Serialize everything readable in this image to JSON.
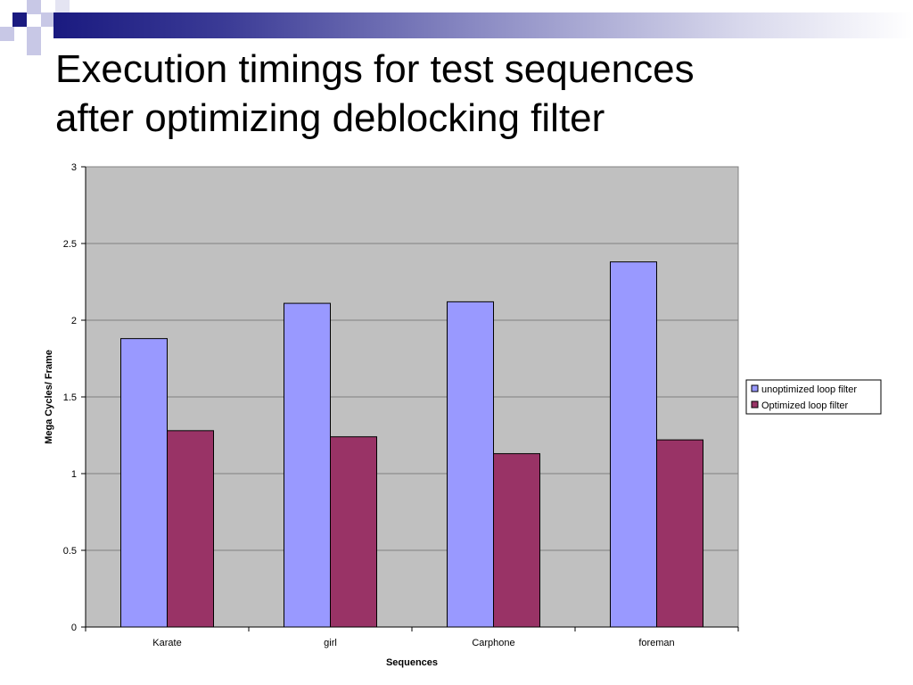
{
  "slide": {
    "title_line1": "Execution timings for test sequences",
    "title_line2": "after optimizing deblocking filter"
  },
  "colors": {
    "plot_bg": "#c0c0c0",
    "bar_series_1": "#9999ff",
    "bar_series_2": "#993366",
    "deco_navy": "#1a1a80",
    "deco_lavender": "#c8c8e6"
  },
  "chart_data": {
    "type": "bar",
    "categories": [
      "Karate",
      "girl",
      "Carphone",
      "foreman"
    ],
    "series": [
      {
        "name": "unoptimized loop filter",
        "values": [
          1.88,
          2.11,
          2.12,
          2.38
        ]
      },
      {
        "name": "Optimized loop filter",
        "values": [
          1.28,
          1.24,
          1.13,
          1.22
        ]
      }
    ],
    "title": "",
    "xlabel": "Sequences",
    "ylabel": "Mega Cycles/ Frame",
    "ylim": [
      0,
      3
    ],
    "yticks": [
      "0",
      "0.5",
      "1",
      "1.5",
      "2",
      "2.5",
      "3"
    ],
    "grid": true,
    "legend_position": "right"
  }
}
